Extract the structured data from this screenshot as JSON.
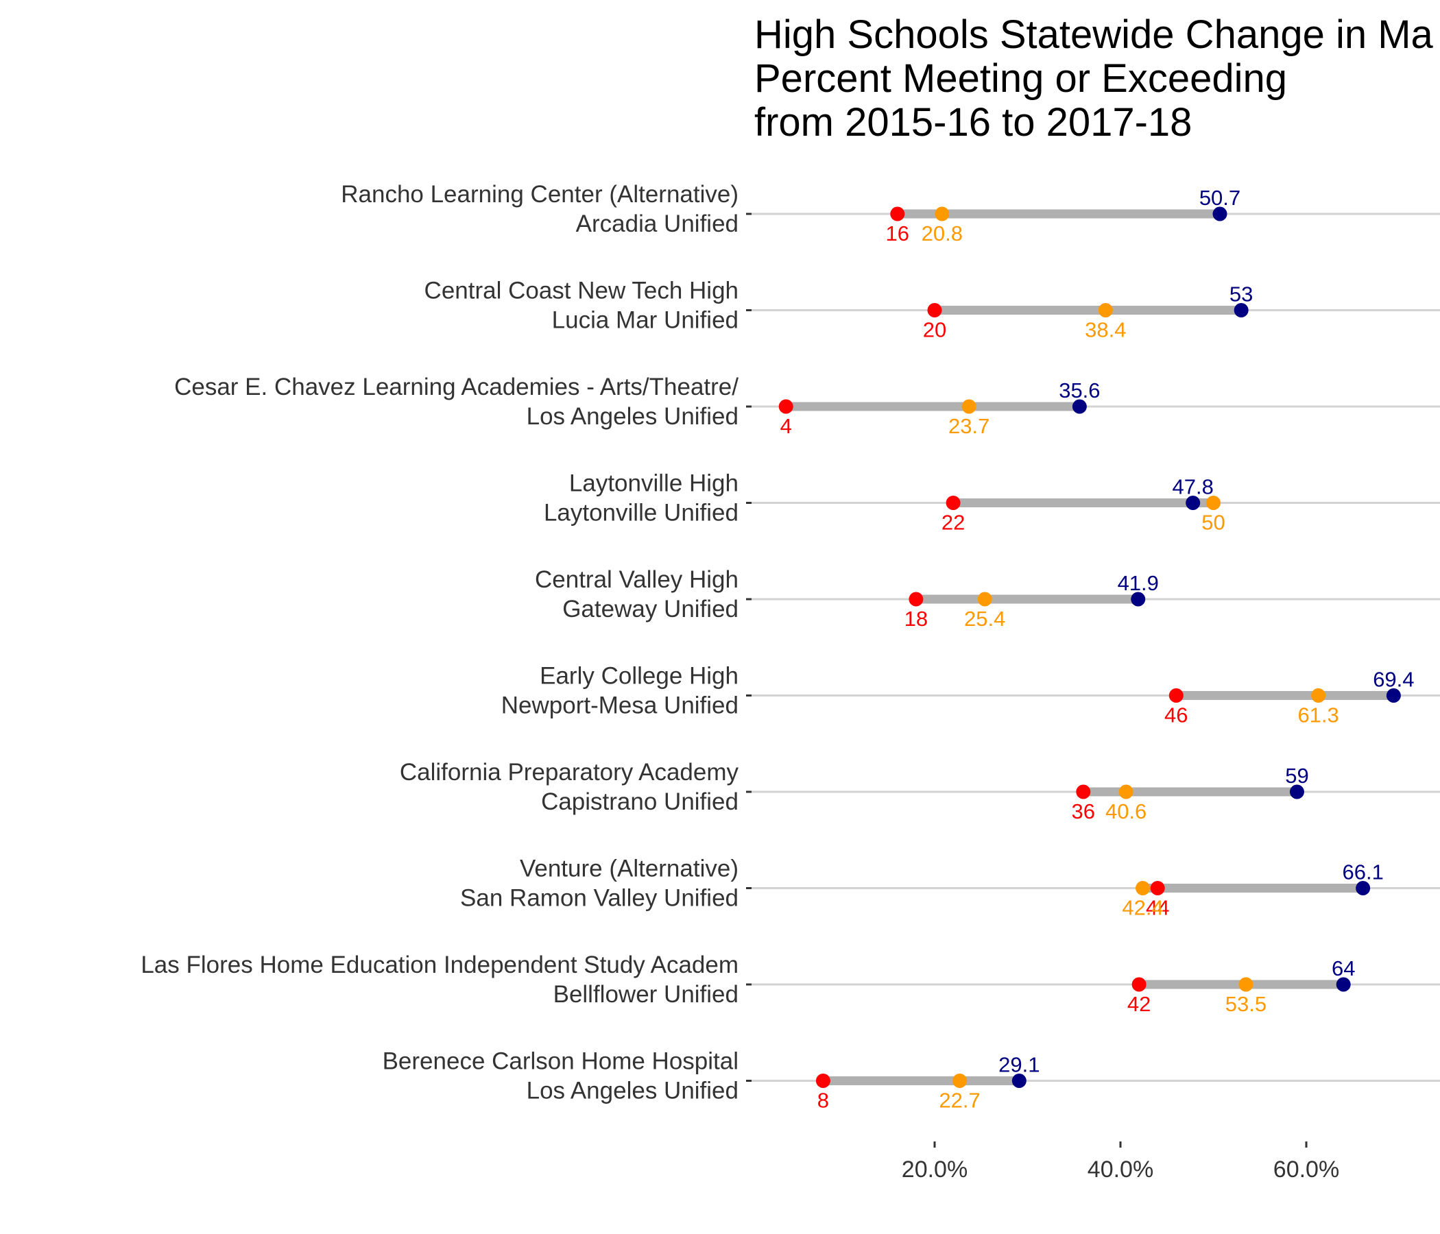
{
  "chart_data": {
    "type": "dumbbell",
    "title_lines": [
      "High Schools Statewide Change in Ma",
      "Percent Meeting or Exceeding",
      "from 2015-16 to 2017-18"
    ],
    "x_ticks": [
      {
        "value": 20,
        "label": "20.0%"
      },
      {
        "value": 40,
        "label": "40.0%"
      },
      {
        "value": 60,
        "label": "60.0%"
      }
    ],
    "x_range": [
      0,
      72.6
    ],
    "grid": "horizontal row lines only",
    "colors": {
      "start": "#ff0000",
      "middle": "#ff9900",
      "end": "#000080",
      "bar": "#b0b0b0",
      "row_line": "#d3d3d3"
    },
    "rows": [
      {
        "school": "Rancho Learning Center (Alternative)",
        "district": "Arcadia Unified",
        "start": 16,
        "middle": 20.8,
        "end": 50.7,
        "start_label": "16",
        "middle_label": "20.8",
        "end_label": "50.7"
      },
      {
        "school": "Central Coast New Tech High",
        "district": "Lucia Mar Unified",
        "start": 20,
        "middle": 38.4,
        "end": 53,
        "start_label": "20",
        "middle_label": "38.4",
        "end_label": "53"
      },
      {
        "school": "Cesar E. Chavez Learning Academies - Arts/Theatre/",
        "district": "Los Angeles Unified",
        "start": 4,
        "middle": 23.7,
        "end": 35.6,
        "start_label": "4",
        "middle_label": "23.7",
        "end_label": "35.6"
      },
      {
        "school": "Laytonville High",
        "district": "Laytonville Unified",
        "start": 22,
        "middle": 50,
        "end": 47.8,
        "start_label": "22",
        "middle_label": "50",
        "end_label": "47.8"
      },
      {
        "school": "Central Valley High",
        "district": "Gateway Unified",
        "start": 18,
        "middle": 25.4,
        "end": 41.9,
        "start_label": "18",
        "middle_label": "25.4",
        "end_label": "41.9"
      },
      {
        "school": "Early College High",
        "district": "Newport-Mesa Unified",
        "start": 46,
        "middle": 61.3,
        "end": 69.4,
        "start_label": "46",
        "middle_label": "61.3",
        "end_label": "69.4"
      },
      {
        "school": "California Preparatory Academy",
        "district": "Capistrano Unified",
        "start": 36,
        "middle": 40.6,
        "end": 59,
        "start_label": "36",
        "middle_label": "40.6",
        "end_label": "59"
      },
      {
        "school": "Venture (Alternative)",
        "district": "San Ramon Valley Unified",
        "start": 44,
        "middle": 42.4,
        "end": 66.1,
        "start_label": "44",
        "middle_label": "42.4",
        "end_label": "66.1"
      },
      {
        "school": "Las Flores Home Education Independent Study Academ",
        "district": "Bellflower Unified",
        "start": 42,
        "middle": 53.5,
        "end": 64,
        "start_label": "42",
        "middle_label": "53.5",
        "end_label": "64"
      },
      {
        "school": "Berenece Carlson Home Hospital",
        "district": "Los Angeles Unified",
        "start": 8,
        "middle": 22.7,
        "end": 29.1,
        "start_label": "8",
        "middle_label": "22.7",
        "end_label": "29.1"
      }
    ]
  }
}
